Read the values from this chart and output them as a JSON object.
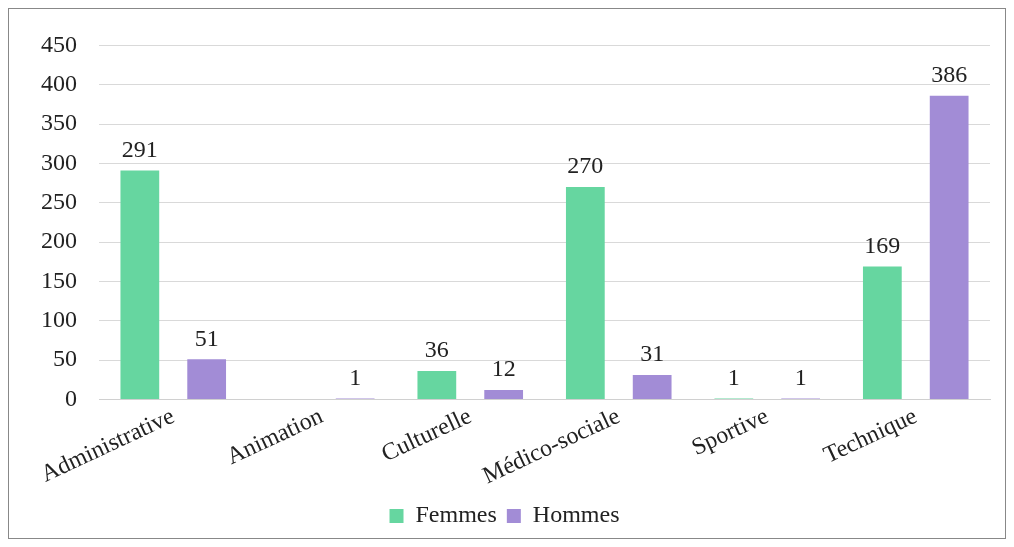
{
  "chart_data": {
    "type": "bar",
    "categories": [
      "Administrative",
      "Animation",
      "Culturelle",
      "Médico-sociale",
      "Sportive",
      "Technique"
    ],
    "series": [
      {
        "name": "Femmes",
        "color": "#66d6a0",
        "values": [
          291,
          null,
          36,
          270,
          1,
          169
        ]
      },
      {
        "name": "Hommes",
        "color": "#a28cd6",
        "values": [
          51,
          1,
          12,
          31,
          1,
          386
        ]
      }
    ],
    "ylim": [
      0,
      450
    ],
    "yticks": [
      0,
      50,
      100,
      150,
      200,
      250,
      300,
      350,
      400,
      450
    ],
    "grid": "y",
    "legend": "bottom",
    "data_labels": true
  }
}
